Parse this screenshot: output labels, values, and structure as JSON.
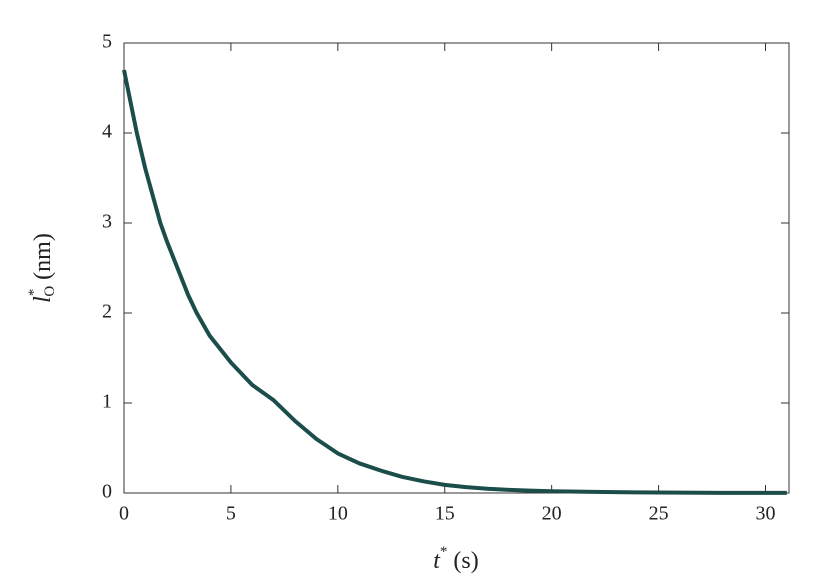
{
  "chart_data": {
    "type": "line",
    "xlabel": {
      "symbol": "t",
      "superscript": "*",
      "unit": "(s)"
    },
    "ylabel": {
      "symbol": "l",
      "superscript": "*",
      "subscript": "O",
      "unit": "(nm)"
    },
    "x": [
      0,
      0.6,
      1,
      1.7,
      2,
      3,
      3.4,
      4,
      5,
      6,
      7,
      8,
      9,
      10,
      11,
      12,
      13,
      14,
      15,
      16,
      17,
      18,
      19,
      20,
      22,
      24,
      26,
      28,
      31
    ],
    "series": [
      {
        "color": "#1b4d4b",
        "values": [
          4.7,
          4.0,
          3.6,
          3.0,
          2.8,
          2.2,
          2.0,
          1.75,
          1.45,
          1.2,
          1.03,
          0.8,
          0.6,
          0.44,
          0.33,
          0.25,
          0.18,
          0.13,
          0.09,
          0.065,
          0.047,
          0.035,
          0.026,
          0.02,
          0.012,
          0.007,
          0.004,
          0.002,
          0.001
        ]
      }
    ],
    "xlim": [
      0,
      31.1
    ],
    "xticks": [
      0,
      5,
      10,
      15,
      20,
      25,
      30
    ],
    "ylim": [
      0,
      5
    ],
    "yticks": [
      0,
      1,
      2,
      3,
      4,
      5
    ],
    "grid": false
  }
}
